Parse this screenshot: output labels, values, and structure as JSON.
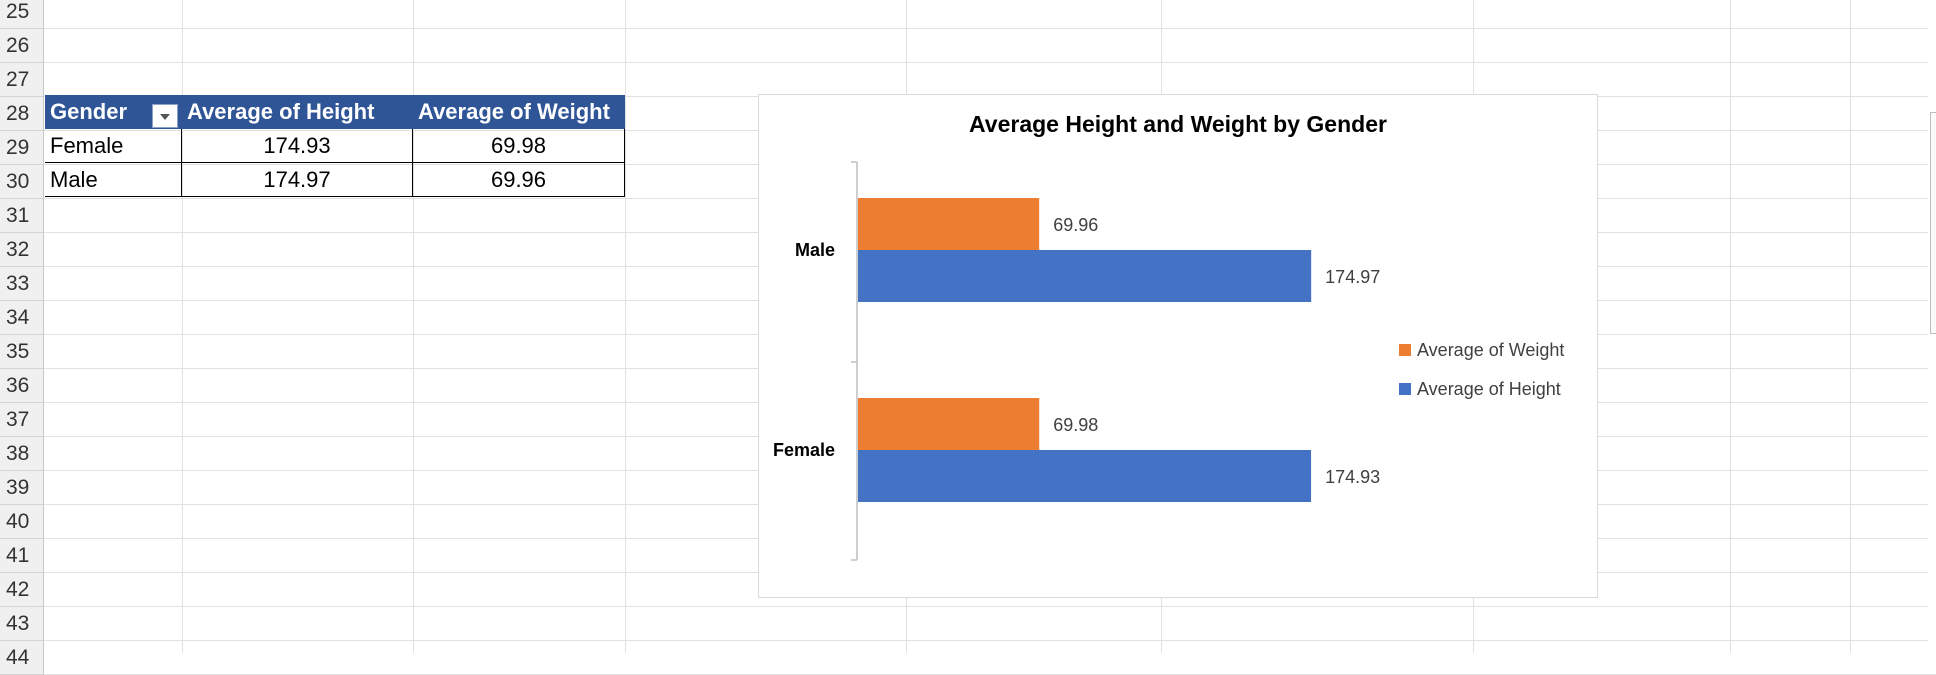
{
  "rows": [
    "25",
    "26",
    "27",
    "28",
    "29",
    "30",
    "31",
    "32",
    "33",
    "34",
    "35",
    "36",
    "37",
    "38",
    "39",
    "40",
    "41",
    "42",
    "43",
    "44"
  ],
  "pivot": {
    "headers": [
      "Gender",
      "Average of Height",
      "Average of Weight"
    ],
    "data": [
      {
        "gender": "Female",
        "height": "174.93",
        "weight": "69.98"
      },
      {
        "gender": "Male",
        "height": "174.97",
        "weight": "69.96"
      }
    ]
  },
  "colors": {
    "height": "#4472c4",
    "weight": "#ed7d31",
    "header_bg": "#2f5597"
  },
  "chart_data": {
    "type": "bar",
    "orientation": "horizontal",
    "title": "Average Height and Weight by Gender",
    "categories": [
      "Male",
      "Female"
    ],
    "series": [
      {
        "name": "Average of Weight",
        "values": [
          69.96,
          69.98
        ],
        "labels": [
          "69.96",
          "69.98"
        ],
        "color": "#ed7d31"
      },
      {
        "name": "Average of Height",
        "values": [
          174.97,
          174.93
        ],
        "labels": [
          "174.97",
          "174.93"
        ],
        "color": "#4472c4"
      }
    ],
    "xlim": [
      0,
      200
    ],
    "legend": "right",
    "grid": false
  }
}
